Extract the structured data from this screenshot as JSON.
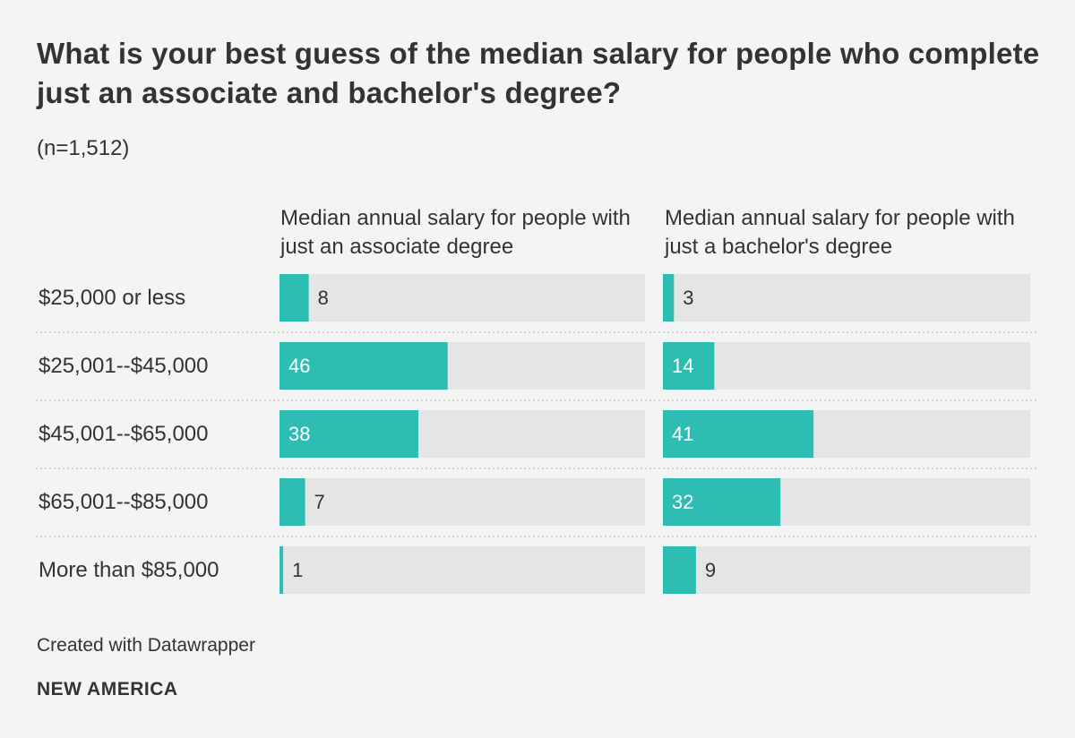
{
  "chart_data": {
    "type": "bar",
    "title": "What is your best guess of the median salary for people who complete just an associate and bachelor's degree?",
    "subtitle": "(n=1,512)",
    "categories": [
      "$25,000 or less",
      "$25,001--$45,000",
      "$45,001--$65,000",
      "$65,001--$85,000",
      "More than $85,000"
    ],
    "series": [
      {
        "name": "Median annual salary for people with just an associate degree",
        "values": [
          8,
          46,
          38,
          7,
          1
        ]
      },
      {
        "name": "Median annual salary for people with just a bachelor's degree",
        "values": [
          3,
          14,
          41,
          32,
          9
        ]
      }
    ],
    "xlim": [
      0,
      100
    ],
    "xlabel": "",
    "ylabel": "",
    "grid": false,
    "legend": "column headers"
  },
  "footer": {
    "credit": "Created with Datawrapper",
    "brand": "NEW AMERICA"
  },
  "colors": {
    "bar": "#2ebdb3",
    "track": "#e5e5e5",
    "background": "#f4f4f4",
    "separator": "#c8c8c8",
    "text": "#333333",
    "label_on_bar": "#ffffff"
  }
}
